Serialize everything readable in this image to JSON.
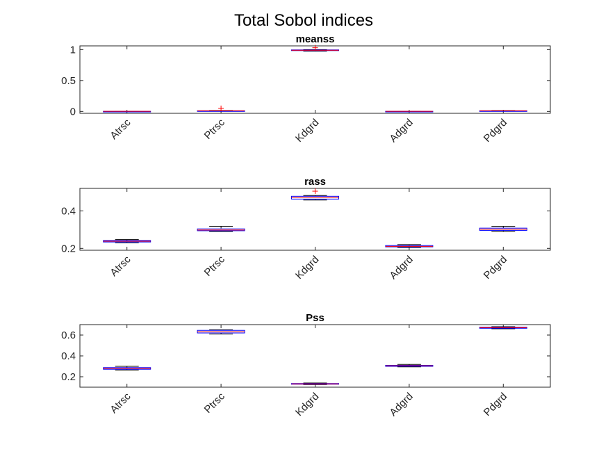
{
  "figure": {
    "title": "Total Sobol indices"
  },
  "colors": {
    "box": "#0000ff",
    "median": "#ff0000",
    "whisker": "#000000",
    "outlier": "#ff0000",
    "axis": "#262626"
  },
  "chart_data": [
    {
      "type": "boxplot",
      "title": "meanss",
      "categories": [
        "Atrsc",
        "Ptrsc",
        "Kdgrd",
        "Adgrd",
        "Pdgrd"
      ],
      "ylim": [
        -0.03,
        1.06
      ],
      "yticks": [
        0,
        0.5,
        1
      ],
      "ytick_labels": [
        "0",
        "0.5",
        "1"
      ],
      "boxes": [
        {
          "min": 0.0,
          "q1": 0.001,
          "median": 0.002,
          "q3": 0.003,
          "max": 0.004,
          "outliers": []
        },
        {
          "min": 0.005,
          "q1": 0.008,
          "median": 0.01,
          "q3": 0.012,
          "max": 0.015,
          "outliers": [
            0.05
          ]
        },
        {
          "min": 0.975,
          "q1": 0.985,
          "median": 0.99,
          "q3": 0.995,
          "max": 1.0,
          "outliers": [
            1.03
          ]
        },
        {
          "min": 0.0,
          "q1": 0.001,
          "median": 0.002,
          "q3": 0.003,
          "max": 0.004,
          "outliers": []
        },
        {
          "min": 0.006,
          "q1": 0.008,
          "median": 0.01,
          "q3": 0.012,
          "max": 0.014,
          "outliers": []
        }
      ]
    },
    {
      "type": "boxplot",
      "title": "rass",
      "categories": [
        "Atrsc",
        "Ptrsc",
        "Kdgrd",
        "Adgrd",
        "Pdgrd"
      ],
      "ylim": [
        0.19,
        0.52
      ],
      "yticks": [
        0.2,
        0.4
      ],
      "ytick_labels": [
        "0.2",
        "0.4"
      ],
      "boxes": [
        {
          "min": 0.23,
          "q1": 0.234,
          "median": 0.238,
          "q3": 0.242,
          "max": 0.247,
          "outliers": []
        },
        {
          "min": 0.29,
          "q1": 0.294,
          "median": 0.298,
          "q3": 0.304,
          "max": 0.318,
          "outliers": []
        },
        {
          "min": 0.458,
          "q1": 0.463,
          "median": 0.472,
          "q3": 0.478,
          "max": 0.482,
          "outliers": [
            0.505
          ]
        },
        {
          "min": 0.205,
          "q1": 0.208,
          "median": 0.211,
          "q3": 0.215,
          "max": 0.22,
          "outliers": []
        },
        {
          "min": 0.29,
          "q1": 0.296,
          "median": 0.302,
          "q3": 0.308,
          "max": 0.318,
          "outliers": []
        }
      ]
    },
    {
      "type": "boxplot",
      "title": "Pss",
      "categories": [
        "Atrsc",
        "Ptrsc",
        "Kdgrd",
        "Adgrd",
        "Pdgrd"
      ],
      "ylim": [
        0.1,
        0.7
      ],
      "yticks": [
        0.2,
        0.4,
        0.6
      ],
      "ytick_labels": [
        "0.2",
        "0.4",
        "0.6"
      ],
      "boxes": [
        {
          "min": 0.265,
          "q1": 0.272,
          "median": 0.28,
          "q3": 0.288,
          "max": 0.3,
          "outliers": []
        },
        {
          "min": 0.61,
          "q1": 0.62,
          "median": 0.632,
          "q3": 0.645,
          "max": 0.65,
          "outliers": []
        },
        {
          "min": 0.125,
          "q1": 0.13,
          "median": 0.132,
          "q3": 0.135,
          "max": 0.14,
          "outliers": []
        },
        {
          "min": 0.295,
          "q1": 0.3,
          "median": 0.305,
          "q3": 0.31,
          "max": 0.318,
          "outliers": []
        },
        {
          "min": 0.66,
          "q1": 0.665,
          "median": 0.67,
          "q3": 0.675,
          "max": 0.68,
          "outliers": []
        }
      ]
    }
  ]
}
